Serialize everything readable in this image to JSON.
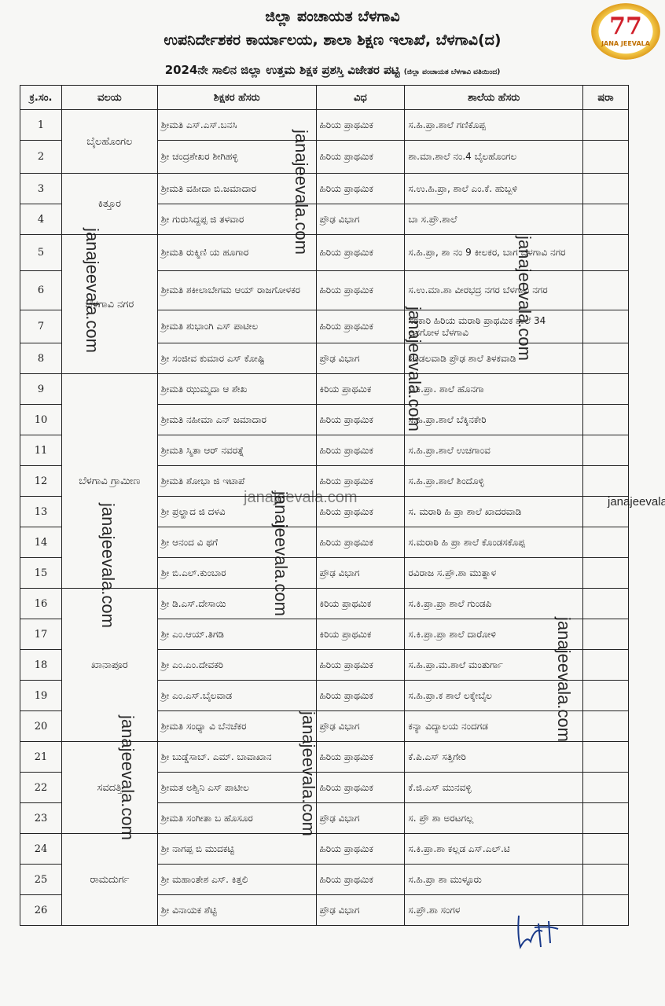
{
  "header": {
    "line1": "ಜಿಲ್ಲಾ ಪಂಚಾಯತ ಬೆಳಗಾವಿ",
    "line2": "ಉಪನಿರ್ದೇಶಕರ ಕಾರ್ಯಾಲಯ, ಶಾಲಾ ಶಿಕ್ಷಣ ಇಲಾಖೆ, ಬೆಳಗಾವಿ(ದ)",
    "line3": "2024ನೇ ಸಾಲಿನ ಜಿಲ್ಲಾ ಉತ್ತಮ ಶಿಕ್ಷಕ ಪ್ರಶಸ್ತಿ ವಿಜೇತರ ಪಟ್ಟಿ",
    "line3_note": "(ಜಿಲ್ಲಾ ಪಂಚಾಯತ ಬೆಳಗಾವಿ ವತಿಯಿಂದ)"
  },
  "logo": {
    "number": "77",
    "text": "JANA JEEVALA"
  },
  "watermark": "janajeevala.com",
  "table": {
    "columns": [
      "ಕ್ರ.ಸಂ.",
      "ವಲಯ",
      "ಶಿಕ್ಷಕರ ಹೆಸರು",
      "ವಿಧ",
      "ಶಾಲೆಯ ಹೆಸರು",
      "ಷರಾ"
    ],
    "zones": [
      {
        "name": "ಬೈಲಹೊಂಗಲ",
        "rows": 2
      },
      {
        "name": "ಕಿತ್ತೂರ",
        "rows": 2
      },
      {
        "name": "ಬೆಳಗಾವಿ ನಗರ",
        "rows": 4
      },
      {
        "name": "ಬೆಳಗಾವಿ ಗ್ರಾಮೀಣ",
        "rows": 7
      },
      {
        "name": "ಖಾನಾಪೂರ",
        "rows": 5
      },
      {
        "name": "ಸವದತ್ತಿ",
        "rows": 3
      },
      {
        "name": "ರಾಮದುರ್ಗ",
        "rows": 3
      }
    ],
    "rows": [
      {
        "no": "1",
        "name": "ಶ್ರೀಮತಿ ಎಸ್.ಎಸ್.ಬನಸಿ",
        "type": "ಹಿರಿಯ ಪ್ರಾಥಮಿಕ",
        "school": "ಸ.ಹಿ.ಪ್ರಾ.ಶಾಲೆ ಗಣಿಕೊಪ್ಪ"
      },
      {
        "no": "2",
        "name": "ಶ್ರೀ ಚಂದ್ರಶೇಖರ ಶೀಗಿಹಳ್ಳಿ",
        "type": "ಹಿರಿಯ ಪ್ರಾಥಮಿಕ",
        "school": "ಶಾ.ಮಾ.ಶಾಲೆ ನಂ.4 ಬೈಲಹೊಂಗಲ"
      },
      {
        "no": "3",
        "name": "ಶ್ರೀಮತಿ ವಹೀದಾ ಬಿ.ಜಮಾದಾರ",
        "type": "ಹಿರಿಯ ಪ್ರಾಥಮಿಕ",
        "school": "ಸ.ಉ.ಹಿ.ಪ್ರಾ, ಶಾಲೆ ಎಂ.ಕೆ. ಹುಬ್ಬಳಿ"
      },
      {
        "no": "4",
        "name": "ಶ್ರೀ ಗುರುಸಿದ್ದಪ್ಪ ಜಿ ತಳವಾರ",
        "type": "ಪ್ರೌಢ ವಿಭಾಗ",
        "school": "ಬಾ ಸ.ಪ್ರೌ.ಶಾಲೆ"
      },
      {
        "no": "5",
        "name": "ಶ್ರೀಮತಿ ರುಕ್ಮಿಣಿ ಯ ಹೂಗಾರ",
        "type": "ಹಿರಿಯ ಪ್ರಾಥಮಿಕ",
        "school": "ಸ.ಹಿ.ಪ್ರಾ, ಶಾ ನಂ 9 ಕೀಲಕರ, ಬಾಗ ಬೆಳಗಾವಿ ನಗರ"
      },
      {
        "no": "6",
        "name": "ಶ್ರೀಮತಿ ಶಕೀಲಾಬೇಗಮ ಆಯ್ ರಾಜಗೋಳಕರ",
        "type": "ಹಿರಿಯ ಪ್ರಾಥಮಿಕ",
        "school": "ಸ.ಉ.ಮಾ.ಶಾ ವೀರಭದ್ರ ನಗರ ಬೆಳಗಾವಿ ನಗರ"
      },
      {
        "no": "7",
        "name": "ಶ್ರೀಮತಿ ಶುಭಾಂಗಿ ಎಸ್ ಪಾಟೀಲ",
        "type": "ಹಿರಿಯ ಪ್ರಾಥಮಿಕ",
        "school": "ಸರಕಾರಿ ಹಿರಿಯ ಮರಾಠಿ ಪ್ರಾಥಮಿಕ ಶಾಲೆ 34 ಅನಗೋಳ ಬೆಳಗಾವಿ"
      },
      {
        "no": "8",
        "name": "ಶ್ರೀ ಸಂಜೀವ ಕುಮಾರ ಎಸ್ ಕೋಷ್ಟಿ",
        "type": "ಪ್ರೌಢ ವಿಭಾಗ",
        "school": "ಹಿಂಡಲವಾಡಿ ಪ್ರೌಢ ಶಾಲೆ ತಿಳಕವಾಡಿ"
      },
      {
        "no": "9",
        "name": "ಶ್ರೀಮತಿ ಝುಮ್ಮದಾ ಆ ಶೇಖ",
        "type": "ಕಿರಿಯ ಪ್ರಾಥಮಿಕ",
        "school": "ಸ.ಕಿ.ಪ್ರಾ. ಶಾಲೆ ಹೊನಗಾ"
      },
      {
        "no": "10",
        "name": "ಶ್ರೀಮತಿ ನಹೀಮಾ ಎನ್ ಜಮಾದಾರ",
        "type": "ಹಿರಿಯ ಪ್ರಾಥಮಿಕ",
        "school": "ಸ.ಹಿ.ಪ್ರಾ.ಶಾಲೆ ಬೆಕ್ಕಿನಕೇರಿ"
      },
      {
        "no": "11",
        "name": "ಶ್ರೀಮತಿ ಸ್ಮಿತಾ ಆರ್ ನವರತ್ನೆ",
        "type": "ಹಿರಿಯ ಪ್ರಾಥಮಿಕ",
        "school": "ಸ.ಹಿ.ಪ್ರಾ.ಶಾಲೆ ಉಚಗಾಂವ"
      },
      {
        "no": "12",
        "name": "ಶ್ರೀಮತಿ ಶೋಭಾ ಜಿ ಇಟಾಪೆ",
        "type": "ಹಿರಿಯ ಪ್ರಾಥಮಿಕ",
        "school": "ಸ.ಹಿ.ಪ್ರಾ.ಶಾಲೆ ಶಿಂದೊಳ್ಳಿ"
      },
      {
        "no": "13",
        "name": "ಶ್ರೀ ಪ್ರಲ್ಹಾದ ಜಿ ದಳವಿ",
        "type": "ಹಿರಿಯ ಪ್ರಾಥಮಿಕ",
        "school": "ಸ. ಮರಾಠಿ ಹಿ ಪ್ರಾ ಶಾಲೆ ಖಾದರವಾಡಿ"
      },
      {
        "no": "14",
        "name": "ಶ್ರೀ ಆನಂದ ವಿ ಥಗೆ",
        "type": "ಹಿರಿಯ ಪ್ರಾಥಮಿಕ",
        "school": "ಸ.ಮರಾಠಿ ಹಿ ಪ್ರಾ ಶಾಲೆ ಕೊಂಡಸಕೊಪ್ಪ"
      },
      {
        "no": "15",
        "name": "ಶ್ರೀ ಬಿ.ಎಲ್.ಕುಂಬಾರ",
        "type": "ಪ್ರೌಢ ವಿಭಾಗ",
        "school": "ರವಿರಾಜ ಸ.ಪ್ರೌ.ಶಾ ಮುತ್ನಾಳ"
      },
      {
        "no": "16",
        "name": "ಶ್ರೀ ಡಿ.ಎಸ್.ದೇಸಾಯಿ",
        "type": "ಕಿರಿಯ ಪ್ರಾಥಮಿಕ",
        "school": "ಸ.ಕಿ.ಪ್ರಾ.ಪ್ರಾ ಶಾಲೆ ಗುಂಡಪಿ"
      },
      {
        "no": "17",
        "name": "ಶ್ರೀ ಎಂ.ಆಯ್.ತಿಗಡಿ",
        "type": "ಕಿರಿಯ ಪ್ರಾಥಮಿಕ",
        "school": "ಸ.ಕಿ.ಪ್ರಾ.ಪ್ರಾ ಶಾಲೆ ದಾರೋಳಿ"
      },
      {
        "no": "18",
        "name": "ಶ್ರೀ ಎಂ.ಎಂ.ದೇವಕರಿ",
        "type": "ಹಿರಿಯ ಪ್ರಾಥಮಿಕ",
        "school": "ಸ.ಹಿ.ಪ್ರಾ.ಮ.ಶಾಲೆ ಮಂತುರ್ಗಾ"
      },
      {
        "no": "19",
        "name": "ಶ್ರೀ ಎಂ.ಎಸ್.ಬೈಲವಾಡ",
        "type": "ಹಿರಿಯ ಪ್ರಾಥಮಿಕ",
        "school": "ಸ.ಹಿ.ಪ್ರಾ.ಕ ಶಾಲೆ ಲಕ್ಕೇಬೈಲ"
      },
      {
        "no": "20",
        "name": "ಶ್ರೀಮತಿ ಸಂಧ್ಯಾ ವಿ ಬೆನಚೆಕರ",
        "type": "ಪ್ರೌಢ ವಿಭಾಗ",
        "school": "ಕನ್ಯಾ ವಿದ್ಯಾಲಯ ನಂದಗಡ"
      },
      {
        "no": "21",
        "name": "ಶ್ರೀ ಬುಡ್ಡೆಸಾಬ್. ಎಮ್. ಬಾವಾಖಾನ",
        "type": "ಹಿರಿಯ ಪ್ರಾಥಮಿಕ",
        "school": "ಕೆ.ಪಿ.ಎಸ್ ಸತ್ತಿಗೇರಿ"
      },
      {
        "no": "22",
        "name": "ಶ್ರೀಮತ ಅಶ್ವಿನಿ ಎಸ್ ಪಾಟೀಲ",
        "type": "ಹಿರಿಯ ಪ್ರಾಥಮಿಕ",
        "school": "ಕೆ.ಜಿ.ಎಸ್ ಮುನವಳ್ಳಿ"
      },
      {
        "no": "23",
        "name": "ಶ್ರೀಮತಿ ಸಂಗೀತಾ ಬ ಹೊಸೂರ",
        "type": "ಪ್ರೌಢ ವಿಭಾಗ",
        "school": "ಸ. ಪ್ರೌ ಶಾ ಅರಟಗಲ್ಲ"
      },
      {
        "no": "24",
        "name": "ಶ್ರೀ ನಾಗಪ್ಪ ಬಿ ಮುದಕಟ್ಟಿ",
        "type": "ಹಿರಿಯ ಪ್ರಾಥಮಿಕ",
        "school": "ಸ.ಕಿ.ಪ್ರಾ.ಶಾ ಕಲ್ಲಡ ಎಸ್.ಎಲ್.ಟಿ"
      },
      {
        "no": "25",
        "name": "ಶ್ರೀ ಮಹಾಂತೇಶ ಎಸ್. ಕಿತ್ತಲಿ",
        "type": "ಹಿರಿಯ ಪ್ರಾಥಮಿಕ",
        "school": "ಸ.ಹಿ.ಪ್ರಾ ಶಾ ಮುಳ್ಳೂರು"
      },
      {
        "no": "26",
        "name": "ಶ್ರೀ ವಿನಾಯಕ ಶೆಟ್ಟಿ",
        "type": "ಪ್ರೌಢ ವಿಭಾಗ",
        "school": "ಸ.ಪ್ರೌ.ಶಾ ಸಂಗಳ"
      }
    ]
  }
}
